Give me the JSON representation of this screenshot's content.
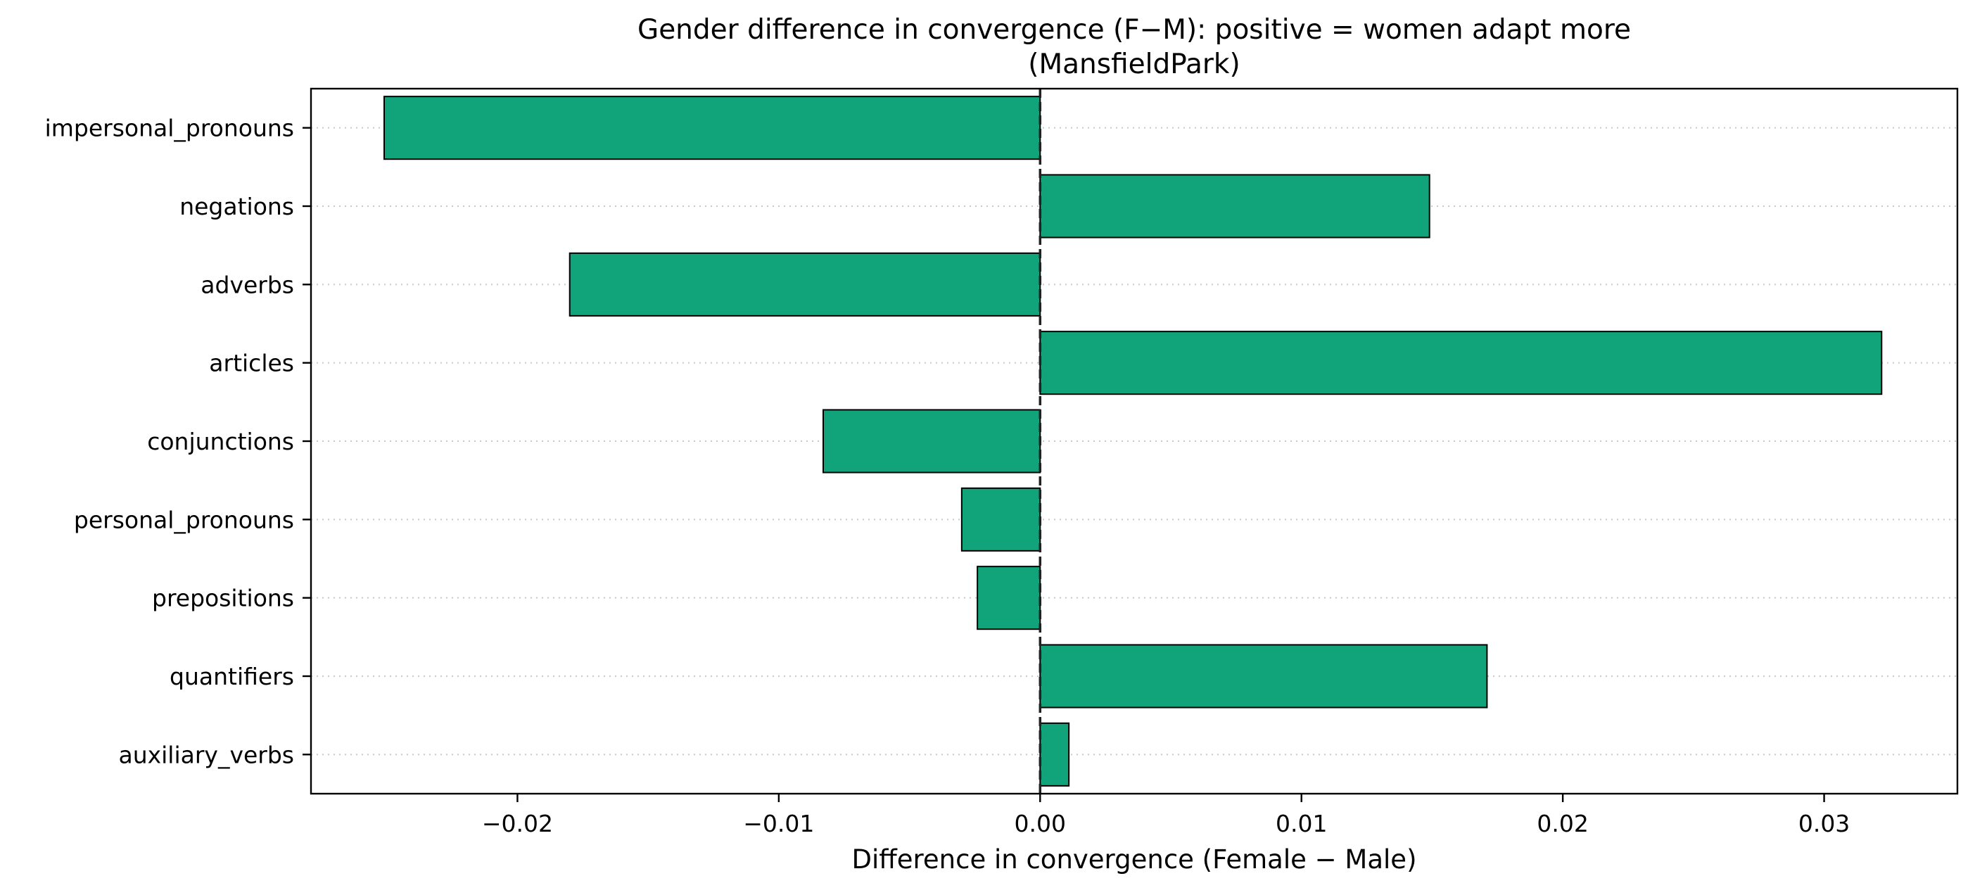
{
  "chart_data": {
    "type": "bar",
    "orientation": "horizontal",
    "title": "Gender difference in convergence (F−M): positive = women adapt more",
    "subtitle": "(MansfieldPark)",
    "xlabel": "Difference in convergence (Female − Male)",
    "ylabel": "",
    "categories": [
      "impersonal_pronouns",
      "negations",
      "adverbs",
      "articles",
      "conjunctions",
      "personal_pronouns",
      "prepositions",
      "quantifiers",
      "auxiliary_verbs"
    ],
    "values": [
      -0.0251,
      0.0149,
      -0.018,
      0.0322,
      -0.0083,
      -0.003,
      -0.0024,
      0.0171,
      0.0011
    ],
    "xlim": [
      -0.0279,
      0.0351
    ],
    "xticks": [
      -0.02,
      -0.01,
      0.0,
      0.01,
      0.02,
      0.03
    ],
    "xtick_labels": [
      "−0.02",
      "−0.01",
      "0.00",
      "0.01",
      "0.02",
      "0.03"
    ],
    "grid": "horizontal dotted",
    "legend": "none",
    "reference_line": 0.0,
    "colors": {
      "bar_fill": "#11a37a",
      "bar_edge": "#000000",
      "zero_line": "#222222",
      "grid": "#c8c8c8"
    }
  }
}
